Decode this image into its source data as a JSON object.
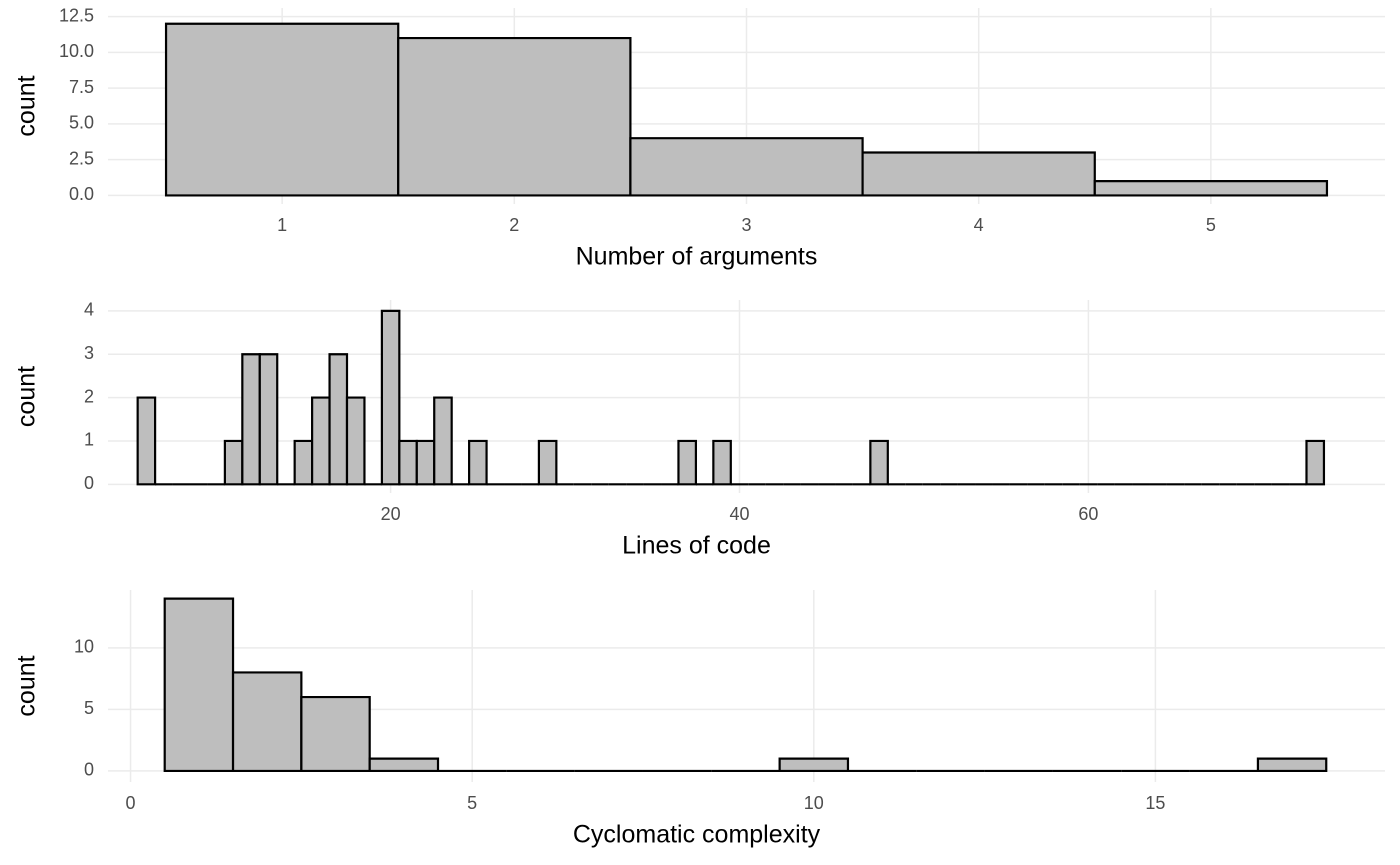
{
  "chart_data": [
    {
      "type": "histogram",
      "xlabel": "Number of arguments",
      "ylabel": "count",
      "bins": [
        0.5,
        1.5,
        2.5,
        3.5,
        4.5,
        5.5
      ],
      "counts": [
        12,
        11,
        4,
        3,
        1
      ],
      "color": "#bebebe",
      "edgecolor": "#000000",
      "grid": true,
      "xlim": [
        0.25,
        5.75
      ],
      "xticks": [
        1,
        2,
        3,
        4,
        5
      ],
      "ylim": [
        -0.6,
        13.1
      ],
      "yticks": [
        {
          "value": 0,
          "label": "0.0"
        },
        {
          "value": 2.5,
          "label": "2.5"
        },
        {
          "value": 5,
          "label": "5.0"
        },
        {
          "value": 7.5,
          "label": "7.5"
        },
        {
          "value": 10,
          "label": "10.0"
        },
        {
          "value": 12.5,
          "label": "12.5"
        }
      ]
    },
    {
      "type": "histogram",
      "xlabel": "Lines of code",
      "ylabel": "count",
      "bins": [
        5.5,
        6.5,
        7.5,
        8.5,
        9.5,
        10.5,
        11.5,
        12.5,
        13.5,
        14.5,
        15.5,
        16.5,
        17.5,
        18.5,
        19.5,
        20.5,
        21.5,
        22.5,
        23.5,
        24.5,
        25.5,
        26.5,
        27.5,
        28.5,
        29.5,
        30.5,
        31.5,
        32.5,
        33.5,
        34.5,
        35.5,
        36.5,
        37.5,
        38.5,
        39.5,
        40.5,
        41.5,
        42.5,
        43.5,
        44.5,
        45.5,
        46.5,
        47.5,
        48.5,
        49.5,
        50.5,
        51.5,
        52.5,
        53.5,
        54.5,
        55.5,
        56.5,
        57.5,
        58.5,
        59.5,
        60.5,
        61.5,
        62.5,
        63.5,
        64.5,
        65.5,
        66.5,
        67.5,
        68.5,
        69.5,
        70.5,
        71.5,
        72.5,
        73.5
      ],
      "counts": [
        2,
        0,
        0,
        0,
        0,
        1,
        3,
        3,
        0,
        1,
        2,
        3,
        2,
        0,
        4,
        1,
        1,
        2,
        0,
        1,
        0,
        0,
        0,
        1,
        0,
        0,
        0,
        0,
        0,
        0,
        0,
        1,
        0,
        1,
        0,
        0,
        0,
        0,
        0,
        0,
        0,
        0,
        1,
        0,
        0,
        0,
        0,
        0,
        0,
        0,
        0,
        0,
        0,
        0,
        0,
        0,
        0,
        0,
        0,
        0,
        0,
        0,
        0,
        0,
        0,
        0,
        0,
        1
      ],
      "color": "#bebebe",
      "edgecolor": "#000000",
      "grid": true,
      "xlim": [
        3.8,
        77
      ],
      "xticks": [
        20,
        40,
        60
      ],
      "ylim": [
        -0.2,
        4.25
      ],
      "yticks": [
        0,
        1,
        2,
        3,
        4
      ]
    },
    {
      "type": "histogram",
      "xlabel": "Cyclomatic complexity",
      "ylabel": "count",
      "bins": [
        0.5,
        1.5,
        2.5,
        3.5,
        4.5,
        5.5,
        6.5,
        7.5,
        8.5,
        9.5,
        10.5,
        11.5,
        12.5,
        13.5,
        14.5,
        15.5,
        16.5,
        17.5
      ],
      "counts": [
        14,
        8,
        6,
        1,
        0,
        0,
        0,
        0,
        0,
        1,
        0,
        0,
        0,
        0,
        0,
        0,
        1
      ],
      "color": "#bebebe",
      "edgecolor": "#000000",
      "grid": true,
      "xlim": [
        -0.33,
        18.36
      ],
      "xticks": [
        0,
        5,
        10,
        15
      ],
      "ylim": [
        -0.9,
        14.7
      ],
      "yticks": [
        0,
        5,
        10
      ]
    }
  ]
}
